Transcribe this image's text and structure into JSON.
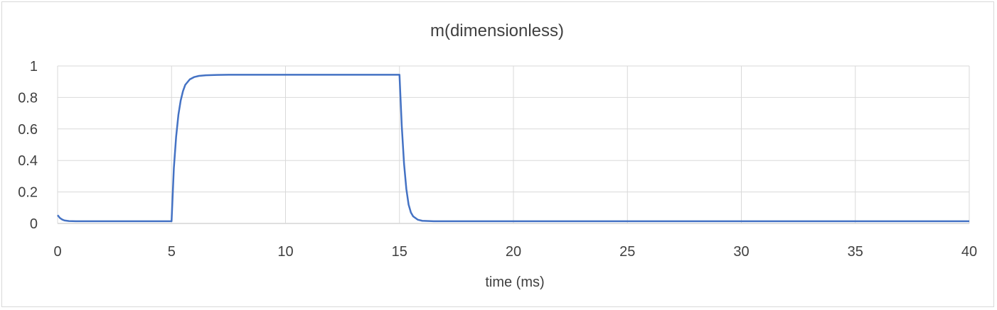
{
  "chart_data": {
    "type": "line",
    "title": "m(dimensionless)",
    "xlabel": "time (ms)",
    "ylabel": "",
    "xlim": [
      0,
      40
    ],
    "ylim": [
      0,
      1
    ],
    "x_ticks": [
      0,
      5,
      10,
      15,
      20,
      25,
      30,
      35,
      40
    ],
    "y_ticks": [
      0,
      0.2,
      0.4,
      0.6,
      0.8,
      1
    ],
    "grid": true,
    "legend": "none",
    "series": [
      {
        "color": "#4472c4",
        "x": [
          0,
          0.1,
          0.2,
          0.3,
          0.5,
          0.8,
          1,
          2,
          3,
          4,
          4.99,
          5,
          5.1,
          5.2,
          5.3,
          5.4,
          5.5,
          5.6,
          5.8,
          6,
          6.2,
          6.5,
          7,
          7.5,
          8,
          9,
          10,
          12,
          14,
          14.99,
          15,
          15.1,
          15.2,
          15.3,
          15.4,
          15.5,
          15.6,
          15.8,
          16,
          16.5,
          17,
          20,
          25,
          30,
          35,
          40
        ],
        "y": [
          0.053,
          0.035,
          0.025,
          0.019,
          0.015,
          0.014,
          0.014,
          0.014,
          0.014,
          0.014,
          0.014,
          0.014,
          0.35,
          0.55,
          0.69,
          0.78,
          0.84,
          0.88,
          0.915,
          0.93,
          0.937,
          0.941,
          0.943,
          0.944,
          0.944,
          0.944,
          0.944,
          0.944,
          0.944,
          0.944,
          0.944,
          0.62,
          0.38,
          0.22,
          0.12,
          0.07,
          0.045,
          0.024,
          0.017,
          0.014,
          0.014,
          0.014,
          0.014,
          0.014,
          0.014,
          0.014
        ]
      }
    ]
  }
}
